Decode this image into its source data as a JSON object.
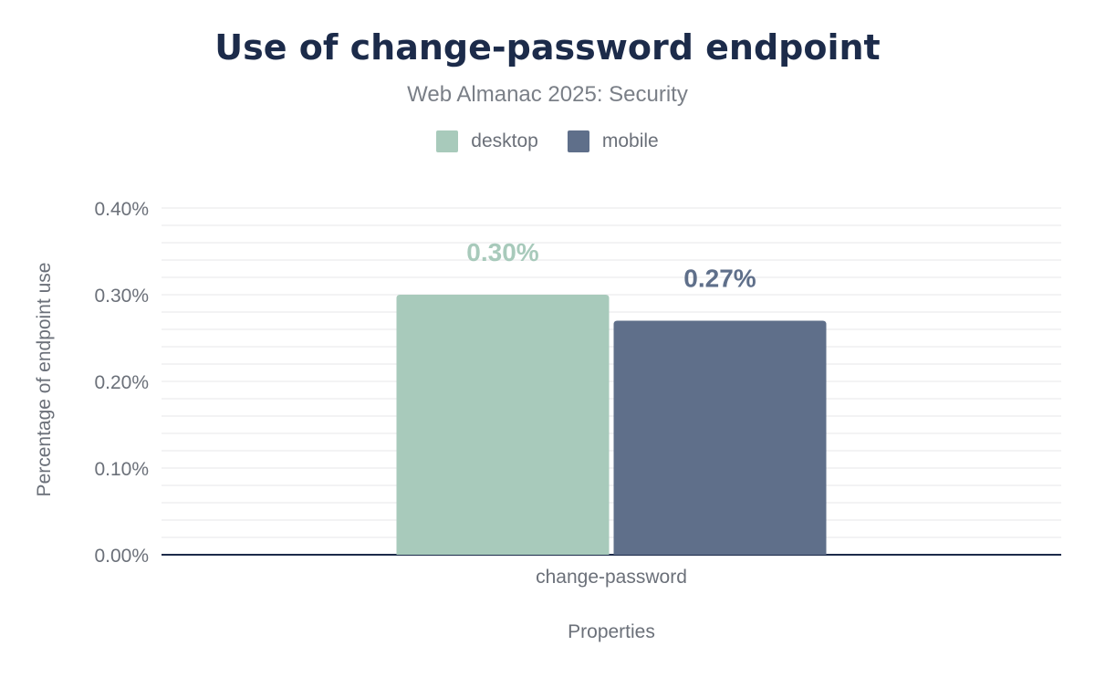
{
  "chart_data": {
    "type": "bar",
    "title": "Use of change-password endpoint",
    "subtitle": "Web Almanac 2025: Security",
    "xlabel": "Properties",
    "ylabel": "Percentage of endpoint use",
    "categories": [
      "change-password"
    ],
    "series": [
      {
        "name": "desktop",
        "values": [
          0.3
        ],
        "label": "0.30%",
        "color": "#a8cabb"
      },
      {
        "name": "mobile",
        "values": [
          0.27
        ],
        "label": "0.27%",
        "color": "#5f6f8a"
      }
    ],
    "ylim": [
      0,
      0.4
    ],
    "yticks": [
      {
        "value": 0.0,
        "label": "0.00%"
      },
      {
        "value": 0.1,
        "label": "0.10%"
      },
      {
        "value": 0.2,
        "label": "0.20%"
      },
      {
        "value": 0.3,
        "label": "0.30%"
      },
      {
        "value": 0.4,
        "label": "0.40%"
      }
    ],
    "minor_grid_step": 0.02,
    "grid": true,
    "legend_position": "top-center"
  }
}
